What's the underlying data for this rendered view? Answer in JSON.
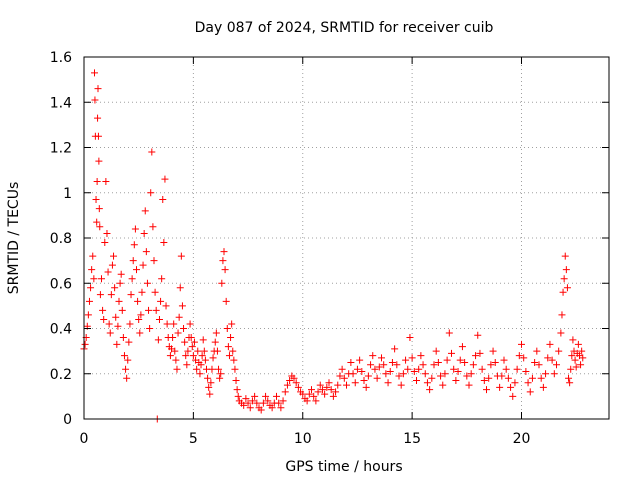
{
  "chart_data": {
    "type": "scatter",
    "title": "Day 087 of 2024, SRMTID for receiver cuib",
    "xlabel": "GPS time / hours",
    "ylabel": "SRMTID / TECUs",
    "xlim": [
      0,
      24
    ],
    "ylim": [
      0,
      1.6
    ],
    "x_ticks": [
      0,
      5,
      10,
      15,
      20
    ],
    "x_tick_labels": [
      "0",
      "5",
      "10",
      "15",
      "20"
    ],
    "y_ticks": [
      0,
      0.2,
      0.4,
      0.6,
      0.8,
      1,
      1.2,
      1.4,
      1.6
    ],
    "y_tick_labels": [
      "0",
      "0.2",
      "0.4",
      "0.6",
      "0.8",
      "1",
      "1.2",
      "1.4",
      "1.6"
    ],
    "grid": true,
    "marker": "plus",
    "series": [
      {
        "name": "SRMTID",
        "color": "#ff0000",
        "points": [
          [
            0.0,
            0.31
          ],
          [
            0.05,
            0.33
          ],
          [
            0.1,
            0.36
          ],
          [
            0.15,
            0.41
          ],
          [
            0.2,
            0.46
          ],
          [
            0.25,
            0.52
          ],
          [
            0.3,
            0.58
          ],
          [
            0.35,
            0.66
          ],
          [
            0.4,
            0.72
          ],
          [
            0.45,
            0.62
          ],
          [
            0.48,
            1.53
          ],
          [
            0.5,
            1.41
          ],
          [
            0.52,
            1.25
          ],
          [
            0.55,
            0.97
          ],
          [
            0.58,
            0.87
          ],
          [
            0.6,
            1.05
          ],
          [
            0.62,
            1.33
          ],
          [
            0.64,
            1.46
          ],
          [
            0.66,
            1.25
          ],
          [
            0.68,
            1.14
          ],
          [
            0.7,
            0.93
          ],
          [
            0.72,
            0.85
          ],
          [
            0.75,
            0.55
          ],
          [
            0.8,
            0.62
          ],
          [
            0.85,
            0.48
          ],
          [
            0.9,
            0.44
          ],
          [
            0.95,
            0.78
          ],
          [
            1.0,
            1.05
          ],
          [
            1.05,
            0.82
          ],
          [
            1.1,
            0.65
          ],
          [
            1.15,
            0.42
          ],
          [
            1.2,
            0.38
          ],
          [
            1.25,
            0.55
          ],
          [
            1.3,
            0.68
          ],
          [
            1.35,
            0.72
          ],
          [
            1.4,
            0.58
          ],
          [
            1.45,
            0.45
          ],
          [
            1.5,
            0.33
          ],
          [
            1.55,
            0.41
          ],
          [
            1.6,
            0.52
          ],
          [
            1.65,
            0.6
          ],
          [
            1.7,
            0.64
          ],
          [
            1.75,
            0.48
          ],
          [
            1.8,
            0.36
          ],
          [
            1.85,
            0.28
          ],
          [
            1.9,
            0.22
          ],
          [
            1.95,
            0.18
          ],
          [
            2.0,
            0.26
          ],
          [
            2.05,
            0.34
          ],
          [
            2.1,
            0.42
          ],
          [
            2.15,
            0.55
          ],
          [
            2.2,
            0.62
          ],
          [
            2.25,
            0.7
          ],
          [
            2.3,
            0.77
          ],
          [
            2.35,
            0.84
          ],
          [
            2.4,
            0.66
          ],
          [
            2.45,
            0.52
          ],
          [
            2.5,
            0.44
          ],
          [
            2.55,
            0.38
          ],
          [
            2.6,
            0.46
          ],
          [
            2.65,
            0.56
          ],
          [
            2.7,
            0.68
          ],
          [
            2.75,
            0.82
          ],
          [
            2.8,
            0.92
          ],
          [
            2.85,
            0.74
          ],
          [
            2.9,
            0.6
          ],
          [
            2.95,
            0.48
          ],
          [
            3.0,
            0.4
          ],
          [
            3.05,
            1.0
          ],
          [
            3.1,
            1.18
          ],
          [
            3.15,
            0.85
          ],
          [
            3.2,
            0.7
          ],
          [
            3.25,
            0.56
          ],
          [
            3.3,
            0.48
          ],
          [
            3.35,
            0.0
          ],
          [
            3.4,
            0.35
          ],
          [
            3.45,
            0.44
          ],
          [
            3.5,
            0.52
          ],
          [
            3.55,
            0.62
          ],
          [
            3.6,
            0.97
          ],
          [
            3.65,
            0.78
          ],
          [
            3.7,
            1.06
          ],
          [
            3.75,
            0.5
          ],
          [
            3.8,
            0.42
          ],
          [
            3.85,
            0.36
          ],
          [
            3.9,
            0.32
          ],
          [
            3.95,
            0.28
          ],
          [
            4.0,
            0.31
          ],
          [
            4.05,
            0.36
          ],
          [
            4.1,
            0.42
          ],
          [
            4.15,
            0.3
          ],
          [
            4.2,
            0.26
          ],
          [
            4.25,
            0.22
          ],
          [
            4.3,
            0.38
          ],
          [
            4.35,
            0.45
          ],
          [
            4.4,
            0.58
          ],
          [
            4.45,
            0.72
          ],
          [
            4.5,
            0.5
          ],
          [
            4.55,
            0.4
          ],
          [
            4.6,
            0.34
          ],
          [
            4.65,
            0.28
          ],
          [
            4.7,
            0.24
          ],
          [
            4.75,
            0.3
          ],
          [
            4.8,
            0.36
          ],
          [
            4.85,
            0.42
          ],
          [
            4.9,
            0.36
          ],
          [
            4.95,
            0.32
          ],
          [
            5.0,
            0.28
          ],
          [
            5.05,
            0.34
          ],
          [
            5.1,
            0.26
          ],
          [
            5.15,
            0.22
          ],
          [
            5.2,
            0.3
          ],
          [
            5.25,
            0.25
          ],
          [
            5.3,
            0.2
          ],
          [
            5.35,
            0.24
          ],
          [
            5.4,
            0.28
          ],
          [
            5.45,
            0.35
          ],
          [
            5.5,
            0.3
          ],
          [
            5.55,
            0.26
          ],
          [
            5.6,
            0.22
          ],
          [
            5.65,
            0.18
          ],
          [
            5.7,
            0.14
          ],
          [
            5.75,
            0.11
          ],
          [
            5.8,
            0.16
          ],
          [
            5.85,
            0.22
          ],
          [
            5.9,
            0.27
          ],
          [
            5.95,
            0.3
          ],
          [
            6.0,
            0.34
          ],
          [
            6.05,
            0.38
          ],
          [
            6.1,
            0.3
          ],
          [
            6.15,
            0.22
          ],
          [
            6.2,
            0.18
          ],
          [
            6.25,
            0.2
          ],
          [
            6.3,
            0.6
          ],
          [
            6.35,
            0.7
          ],
          [
            6.4,
            0.74
          ],
          [
            6.45,
            0.66
          ],
          [
            6.5,
            0.52
          ],
          [
            6.55,
            0.4
          ],
          [
            6.6,
            0.32
          ],
          [
            6.65,
            0.28
          ],
          [
            6.7,
            0.36
          ],
          [
            6.75,
            0.42
          ],
          [
            6.8,
            0.3
          ],
          [
            6.85,
            0.26
          ],
          [
            6.9,
            0.22
          ],
          [
            6.95,
            0.17
          ],
          [
            7.0,
            0.13
          ],
          [
            7.05,
            0.1
          ],
          [
            7.1,
            0.08
          ],
          [
            7.2,
            0.07
          ],
          [
            7.3,
            0.06
          ],
          [
            7.4,
            0.09
          ],
          [
            7.5,
            0.07
          ],
          [
            7.6,
            0.05
          ],
          [
            7.7,
            0.08
          ],
          [
            7.8,
            0.1
          ],
          [
            7.9,
            0.07
          ],
          [
            8.0,
            0.05
          ],
          [
            8.1,
            0.04
          ],
          [
            8.2,
            0.07
          ],
          [
            8.3,
            0.1
          ],
          [
            8.4,
            0.08
          ],
          [
            8.5,
            0.06
          ],
          [
            8.6,
            0.05
          ],
          [
            8.7,
            0.07
          ],
          [
            8.8,
            0.1
          ],
          [
            8.9,
            0.07
          ],
          [
            9.0,
            0.05
          ],
          [
            9.1,
            0.08
          ],
          [
            9.2,
            0.12
          ],
          [
            9.3,
            0.15
          ],
          [
            9.4,
            0.17
          ],
          [
            9.5,
            0.19
          ],
          [
            9.6,
            0.18
          ],
          [
            9.7,
            0.16
          ],
          [
            9.8,
            0.14
          ],
          [
            9.9,
            0.12
          ],
          [
            10.0,
            0.11
          ],
          [
            10.1,
            0.09
          ],
          [
            10.2,
            0.08
          ],
          [
            10.3,
            0.11
          ],
          [
            10.4,
            0.13
          ],
          [
            10.5,
            0.1
          ],
          [
            10.6,
            0.08
          ],
          [
            10.7,
            0.12
          ],
          [
            10.8,
            0.15
          ],
          [
            10.9,
            0.13
          ],
          [
            11.0,
            0.11
          ],
          [
            11.1,
            0.14
          ],
          [
            11.2,
            0.16
          ],
          [
            11.3,
            0.13
          ],
          [
            11.4,
            0.1
          ],
          [
            11.5,
            0.12
          ],
          [
            11.6,
            0.15
          ],
          [
            11.7,
            0.19
          ],
          [
            11.8,
            0.22
          ],
          [
            11.9,
            0.18
          ],
          [
            12.0,
            0.15
          ],
          [
            12.1,
            0.2
          ],
          [
            12.2,
            0.25
          ],
          [
            12.3,
            0.2
          ],
          [
            12.4,
            0.16
          ],
          [
            12.5,
            0.22
          ],
          [
            12.6,
            0.26
          ],
          [
            12.7,
            0.21
          ],
          [
            12.8,
            0.17
          ],
          [
            12.9,
            0.14
          ],
          [
            13.0,
            0.19
          ],
          [
            13.1,
            0.24
          ],
          [
            13.2,
            0.28
          ],
          [
            13.3,
            0.22
          ],
          [
            13.4,
            0.18
          ],
          [
            13.5,
            0.23
          ],
          [
            13.6,
            0.27
          ],
          [
            13.7,
            0.24
          ],
          [
            13.8,
            0.2
          ],
          [
            13.9,
            0.16
          ],
          [
            14.0,
            0.21
          ],
          [
            14.1,
            0.25
          ],
          [
            14.2,
            0.31
          ],
          [
            14.3,
            0.24
          ],
          [
            14.4,
            0.19
          ],
          [
            14.5,
            0.15
          ],
          [
            14.6,
            0.2
          ],
          [
            14.7,
            0.26
          ],
          [
            14.8,
            0.22
          ],
          [
            14.9,
            0.36
          ],
          [
            15.0,
            0.27
          ],
          [
            15.1,
            0.21
          ],
          [
            15.2,
            0.17
          ],
          [
            15.3,
            0.22
          ],
          [
            15.4,
            0.28
          ],
          [
            15.5,
            0.24
          ],
          [
            15.6,
            0.2
          ],
          [
            15.7,
            0.16
          ],
          [
            15.8,
            0.13
          ],
          [
            15.9,
            0.18
          ],
          [
            16.0,
            0.24
          ],
          [
            16.1,
            0.3
          ],
          [
            16.2,
            0.25
          ],
          [
            16.3,
            0.19
          ],
          [
            16.4,
            0.15
          ],
          [
            16.5,
            0.2
          ],
          [
            16.6,
            0.26
          ],
          [
            16.7,
            0.38
          ],
          [
            16.8,
            0.29
          ],
          [
            16.9,
            0.22
          ],
          [
            17.0,
            0.17
          ],
          [
            17.1,
            0.21
          ],
          [
            17.2,
            0.26
          ],
          [
            17.3,
            0.32
          ],
          [
            17.4,
            0.25
          ],
          [
            17.5,
            0.19
          ],
          [
            17.6,
            0.15
          ],
          [
            17.7,
            0.2
          ],
          [
            17.8,
            0.24
          ],
          [
            17.9,
            0.28
          ],
          [
            18.0,
            0.37
          ],
          [
            18.1,
            0.29
          ],
          [
            18.2,
            0.22
          ],
          [
            18.3,
            0.17
          ],
          [
            18.4,
            0.13
          ],
          [
            18.5,
            0.18
          ],
          [
            18.6,
            0.24
          ],
          [
            18.7,
            0.3
          ],
          [
            18.8,
            0.25
          ],
          [
            18.9,
            0.19
          ],
          [
            19.0,
            0.14
          ],
          [
            19.1,
            0.19
          ],
          [
            19.2,
            0.26
          ],
          [
            19.3,
            0.22
          ],
          [
            19.4,
            0.18
          ],
          [
            19.5,
            0.14
          ],
          [
            19.6,
            0.1
          ],
          [
            19.7,
            0.16
          ],
          [
            19.8,
            0.22
          ],
          [
            19.9,
            0.28
          ],
          [
            20.0,
            0.33
          ],
          [
            20.1,
            0.27
          ],
          [
            20.2,
            0.21
          ],
          [
            20.3,
            0.16
          ],
          [
            20.4,
            0.12
          ],
          [
            20.5,
            0.18
          ],
          [
            20.6,
            0.25
          ],
          [
            20.7,
            0.3
          ],
          [
            20.8,
            0.24
          ],
          [
            20.9,
            0.18
          ],
          [
            21.0,
            0.14
          ],
          [
            21.1,
            0.2
          ],
          [
            21.2,
            0.27
          ],
          [
            21.3,
            0.33
          ],
          [
            21.4,
            0.26
          ],
          [
            21.5,
            0.2
          ],
          [
            21.6,
            0.24
          ],
          [
            21.7,
            0.3
          ],
          [
            21.8,
            0.38
          ],
          [
            21.85,
            0.46
          ],
          [
            21.9,
            0.56
          ],
          [
            21.95,
            0.62
          ],
          [
            22.0,
            0.72
          ],
          [
            22.05,
            0.66
          ],
          [
            22.1,
            0.58
          ],
          [
            22.15,
            0.18
          ],
          [
            22.2,
            0.16
          ],
          [
            22.25,
            0.22
          ],
          [
            22.3,
            0.28
          ],
          [
            22.35,
            0.35
          ],
          [
            22.4,
            0.3
          ],
          [
            22.45,
            0.26
          ],
          [
            22.5,
            0.23
          ],
          [
            22.55,
            0.29
          ],
          [
            22.6,
            0.33
          ],
          [
            22.65,
            0.28
          ],
          [
            22.7,
            0.24
          ],
          [
            22.75,
            0.3
          ],
          [
            22.8,
            0.27
          ]
        ]
      }
    ]
  }
}
